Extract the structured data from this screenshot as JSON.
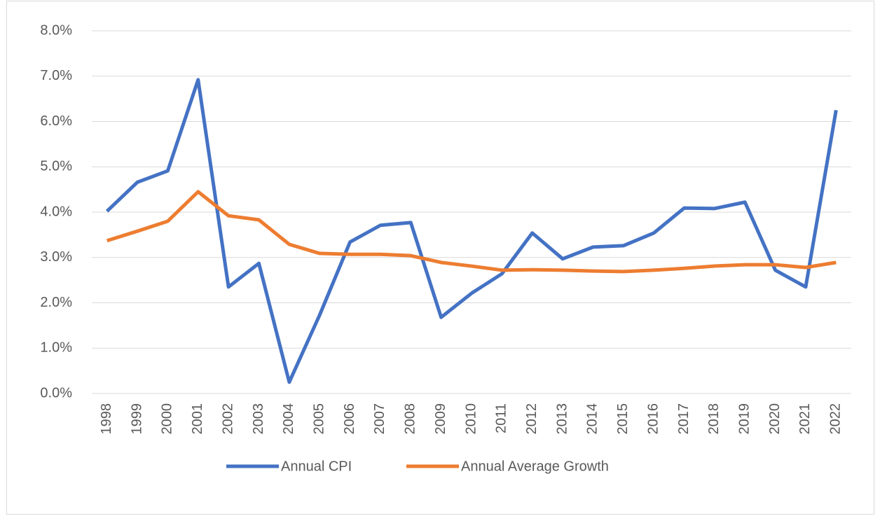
{
  "chart_data": {
    "type": "line",
    "categories": [
      "1998",
      "1999",
      "2000",
      "2001",
      "2002",
      "2003",
      "2004",
      "2005",
      "2006",
      "2007",
      "2008",
      "2009",
      "2010",
      "2011",
      "2012",
      "2013",
      "2014",
      "2015",
      "2016",
      "2017",
      "2018",
      "2019",
      "2020",
      "2021",
      "2022"
    ],
    "series": [
      {
        "name": "Annual CPI",
        "color": "#4472c4",
        "values": [
          4.02,
          4.66,
          4.91,
          6.92,
          2.35,
          2.87,
          0.25,
          1.73,
          3.34,
          3.71,
          3.77,
          1.68,
          2.21,
          2.64,
          3.54,
          2.97,
          3.23,
          3.26,
          3.54,
          4.09,
          4.08,
          4.22,
          2.72,
          2.35,
          6.25
        ]
      },
      {
        "name": "Annual Average Growth",
        "color": "#ed7d31",
        "values": [
          3.37,
          3.58,
          3.8,
          4.45,
          3.92,
          3.83,
          3.29,
          3.09,
          3.07,
          3.07,
          3.04,
          2.89,
          2.81,
          2.72,
          2.73,
          2.72,
          2.7,
          2.69,
          2.72,
          2.76,
          2.81,
          2.84,
          2.84,
          2.78,
          2.89
        ]
      }
    ],
    "ylim": [
      0,
      8
    ],
    "yticks": [
      {
        "value": 0,
        "label": "0.0%"
      },
      {
        "value": 1,
        "label": "1.0%"
      },
      {
        "value": 2,
        "label": "2.0%"
      },
      {
        "value": 3,
        "label": "3.0%"
      },
      {
        "value": 4,
        "label": "4.0%"
      },
      {
        "value": 5,
        "label": "5.0%"
      },
      {
        "value": 6,
        "label": "6.0%"
      },
      {
        "value": 7,
        "label": "7.0%"
      },
      {
        "value": 8,
        "label": "8.0%"
      }
    ],
    "grid": true,
    "legend": "bottom"
  }
}
